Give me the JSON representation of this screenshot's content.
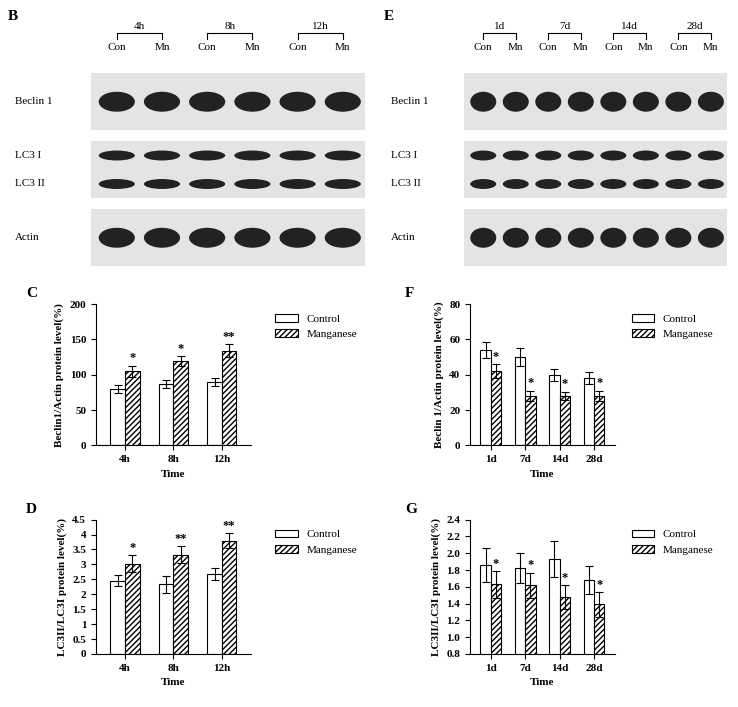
{
  "blots": [
    {
      "panel": "B",
      "groups": [
        "4h",
        "8h",
        "12h"
      ],
      "lanes": [
        "Con",
        "Mn",
        "Con",
        "Mn",
        "Con",
        "Mn"
      ],
      "rows": [
        {
          "labels": [
            "Beclin 1"
          ]
        },
        {
          "labels": [
            "LC3 I",
            "LC3 II"
          ]
        },
        {
          "labels": [
            "Actin"
          ]
        }
      ]
    },
    {
      "panel": "E",
      "groups": [
        "1d",
        "7d",
        "14d",
        "28d"
      ],
      "lanes": [
        "Con",
        "Mn",
        "Con",
        "Mn",
        "Con",
        "Mn",
        "Con",
        "Mn"
      ],
      "rows": [
        {
          "labels": [
            "Beclin 1"
          ]
        },
        {
          "labels": [
            "LC3 I",
            "LC3 II"
          ]
        },
        {
          "labels": [
            "Actin"
          ]
        }
      ]
    }
  ],
  "chart_data": [
    {
      "type": "bar",
      "title": "C",
      "x_label": "Time",
      "y_label": "Beclin1/Actin protein level(%)",
      "categories": [
        "4h",
        "8h",
        "12h"
      ],
      "series": [
        {
          "name": "Control",
          "color": "#ffffff",
          "values": [
            80,
            87,
            90
          ],
          "errors": [
            6,
            6,
            6
          ]
        },
        {
          "name": "Manganese",
          "color": "#ffffff",
          "values": [
            105,
            119,
            134
          ],
          "errors": [
            8,
            7,
            9
          ],
          "significance": [
            "*",
            "*",
            "**"
          ]
        }
      ],
      "ylim": [
        0,
        200
      ],
      "yticks": [
        0,
        50,
        100,
        150,
        200
      ],
      "legend": "upper right"
    },
    {
      "type": "bar",
      "title": "D",
      "x_label": "Time",
      "y_label": "LC3II/LC3I protein level(%)",
      "categories": [
        "4h",
        "8h",
        "12h"
      ],
      "series": [
        {
          "name": "Control",
          "color": "#ffffff",
          "values": [
            2.45,
            2.33,
            2.68
          ],
          "errors": [
            0.18,
            0.28,
            0.2
          ]
        },
        {
          "name": "Manganese",
          "color": "#ffffff",
          "values": [
            3.03,
            3.33,
            3.8
          ],
          "errors": [
            0.28,
            0.28,
            0.25
          ],
          "significance": [
            "*",
            "**",
            "**"
          ]
        }
      ],
      "ylim": [
        0,
        4.5
      ],
      "yticks": [
        0,
        0.5,
        1,
        1.5,
        2,
        2.5,
        3,
        3.5,
        4,
        4.5
      ],
      "legend": "upper right"
    },
    {
      "type": "bar",
      "title": "F",
      "x_label": "Time",
      "y_label": "Beclin 1/Actin protein level(%)",
      "categories": [
        "1d",
        "7d",
        "14d",
        "28d"
      ],
      "series": [
        {
          "name": "Control",
          "color": "#ffffff",
          "values": [
            54,
            50,
            40,
            38
          ],
          "errors": [
            4.5,
            5,
            3.5,
            3.5
          ]
        },
        {
          "name": "Manganese",
          "color": "#ffffff",
          "values": [
            42,
            28,
            28,
            28
          ],
          "errors": [
            4,
            3,
            2.5,
            3
          ],
          "significance": [
            "*",
            "*",
            "*",
            "*"
          ]
        }
      ],
      "ylim": [
        0,
        80
      ],
      "yticks": [
        0,
        20,
        40,
        60,
        80
      ],
      "legend": "upper right"
    },
    {
      "type": "bar",
      "title": "G",
      "x_label": "Time",
      "y_label": "LC3II/LC3I protein level(%)",
      "categories": [
        "1d",
        "7d",
        "14d",
        "28d"
      ],
      "series": [
        {
          "name": "Control",
          "color": "#ffffff",
          "values": [
            1.86,
            1.82,
            1.93,
            1.68
          ],
          "errors": [
            0.2,
            0.18,
            0.21,
            0.17
          ]
        },
        {
          "name": "Manganese",
          "color": "#ffffff",
          "values": [
            1.63,
            1.62,
            1.48,
            1.39
          ],
          "errors": [
            0.16,
            0.15,
            0.14,
            0.15
          ],
          "significance": [
            "*",
            "*",
            "*",
            "*"
          ]
        }
      ],
      "ylim": [
        0.8,
        2.4
      ],
      "yticks": [
        0.8,
        {
          "value": 1.0,
          "label": "1.0"
        },
        1.2,
        1.4,
        1.6,
        1.8,
        {
          "value": 2.0,
          "label": "2.0"
        },
        2.2,
        2.4
      ],
      "legend": "upper right"
    }
  ]
}
